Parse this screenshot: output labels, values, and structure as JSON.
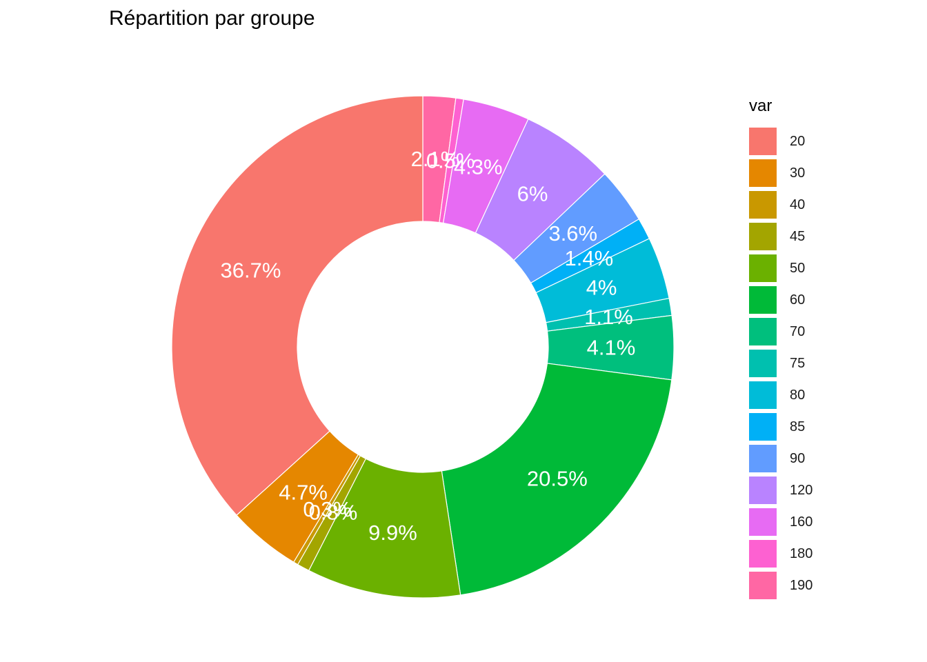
{
  "chart_data": {
    "type": "pie",
    "title": "Répartition par groupe",
    "legend_title": "var",
    "legend_position": "right",
    "slices": [
      {
        "category": "20",
        "value": 36.7,
        "label": "36.7%",
        "color": "#F8766D"
      },
      {
        "category": "30",
        "value": 4.7,
        "label": "4.7%",
        "color": "#E58700"
      },
      {
        "category": "40",
        "value": 0.3,
        "label": "0.3%",
        "color": "#C99800"
      },
      {
        "category": "45",
        "value": 0.8,
        "label": "0.8%",
        "color": "#A3A500"
      },
      {
        "category": "50",
        "value": 9.9,
        "label": "9.9%",
        "color": "#6BB100"
      },
      {
        "category": "60",
        "value": 20.5,
        "label": "20.5%",
        "color": "#00BA38"
      },
      {
        "category": "70",
        "value": 4.1,
        "label": "4.1%",
        "color": "#00BF7D"
      },
      {
        "category": "75",
        "value": 1.1,
        "label": "1.1%",
        "color": "#00C0AF"
      },
      {
        "category": "80",
        "value": 4,
        "label": "4%",
        "color": "#00BCD8"
      },
      {
        "category": "85",
        "value": 1.4,
        "label": "1.4%",
        "color": "#00B0F6"
      },
      {
        "category": "90",
        "value": 3.6,
        "label": "3.6%",
        "color": "#619CFF"
      },
      {
        "category": "120",
        "value": 6,
        "label": "6%",
        "color": "#B983FF"
      },
      {
        "category": "160",
        "value": 4.3,
        "label": "4.3%",
        "color": "#E76BF3"
      },
      {
        "category": "180",
        "value": 0.5,
        "label": "0.5%",
        "color": "#FD61D1"
      },
      {
        "category": "190",
        "value": 2.1,
        "label": "2.1%",
        "color": "#FF67A4"
      }
    ]
  }
}
